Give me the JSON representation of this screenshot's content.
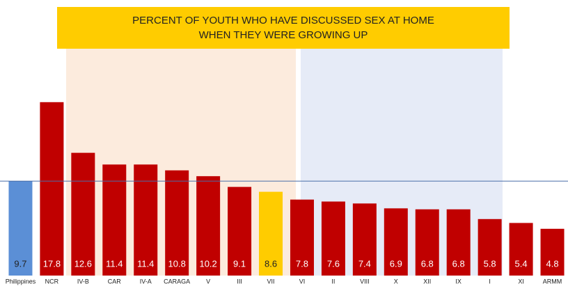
{
  "chart_data": {
    "type": "bar",
    "title": "PERCENT OF YOUTH WHO HAVE DISCUSSED SEX AT HOME",
    "subtitle": "WHEN THEY WERE GROWING UP",
    "categories": [
      "Philippines",
      "NCR",
      "IV-B",
      "CAR",
      "IV-A",
      "CARAGA",
      "V",
      "III",
      "VII",
      "VI",
      "II",
      "VIII",
      "X",
      "XII",
      "IX",
      "I",
      "XI",
      "ARMM"
    ],
    "values": [
      9.7,
      17.8,
      12.6,
      11.4,
      11.4,
      10.8,
      10.2,
      9.1,
      8.6,
      7.8,
      7.6,
      7.4,
      6.9,
      6.8,
      6.8,
      5.8,
      5.4,
      4.8
    ],
    "colors": [
      "#5b8fd6",
      "#c00000",
      "#c00000",
      "#c00000",
      "#c00000",
      "#c00000",
      "#c00000",
      "#c00000",
      "#ffcc00",
      "#c00000",
      "#c00000",
      "#c00000",
      "#c00000",
      "#c00000",
      "#c00000",
      "#c00000",
      "#c00000",
      "#c00000"
    ],
    "ylim": [
      0,
      18.5
    ]
  }
}
